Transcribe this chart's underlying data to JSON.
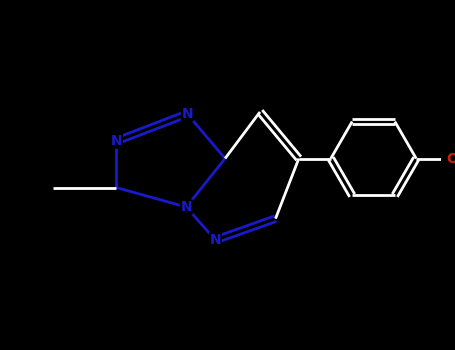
{
  "background_color": "#000000",
  "nitrogen_color": "#1a1acd",
  "oxygen_color": "#cc2200",
  "white_color": "#ffffff",
  "bond_lw": 2.0,
  "dbo": 0.06,
  "figsize": [
    4.55,
    3.5
  ],
  "dpi": 100,
  "xlim": [
    0,
    9.1
  ],
  "ylim": [
    0,
    7.0
  ],
  "bl": 0.88
}
